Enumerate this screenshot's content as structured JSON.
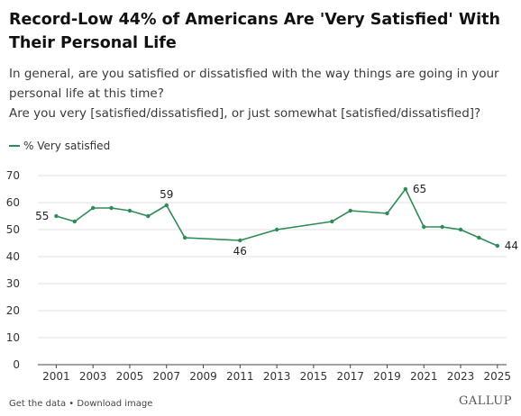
{
  "header": {
    "title": "Record-Low 44% of Americans Are 'Very Satisfied' With Their Personal Life",
    "question_line1": "In general, are you satisfied or dissatisfied with the way things are going in your personal life at this time?",
    "question_line2": "Are you very [satisfied/dissatisfied], or just somewhat [satisfied/dissatisfied]?"
  },
  "footer": {
    "get_data": "Get the data",
    "separator": " • ",
    "download": "Download image",
    "brand": "GALLUP"
  },
  "colors": {
    "series": "#2e8b57",
    "grid": "#e2e2e2",
    "axis": "#444444",
    "text": "#333333"
  },
  "chart_data": {
    "type": "line",
    "title": "Record-Low 44% of Americans Are 'Very Satisfied' With Their Personal Life",
    "xlabel": "",
    "ylabel": "",
    "ylim": [
      0,
      70
    ],
    "yticks": [
      0,
      10,
      20,
      30,
      40,
      50,
      60,
      70
    ],
    "xlim": [
      2000,
      2025.5
    ],
    "xticks": [
      2001,
      2003,
      2005,
      2007,
      2009,
      2011,
      2013,
      2015,
      2017,
      2019,
      2021,
      2023,
      2025
    ],
    "grid": "horizontal",
    "legend_position": "top-left",
    "series": [
      {
        "name": "% Very satisfied",
        "x": [
          2001,
          2002,
          2003,
          2004,
          2005,
          2006,
          2007,
          2008,
          2011,
          2013,
          2016,
          2017,
          2019,
          2020,
          2021,
          2022,
          2023,
          2024,
          2025
        ],
        "values": [
          55,
          53,
          58,
          58,
          57,
          55,
          59,
          47,
          46,
          50,
          53,
          57,
          56,
          65,
          51,
          51,
          50,
          47,
          44
        ]
      }
    ],
    "annotations": [
      {
        "x": 2001,
        "y": 55,
        "text": "55",
        "position": "left"
      },
      {
        "x": 2007,
        "y": 59,
        "text": "59",
        "position": "above"
      },
      {
        "x": 2011,
        "y": 46,
        "text": "46",
        "position": "below"
      },
      {
        "x": 2020,
        "y": 65,
        "text": "65",
        "position": "right"
      },
      {
        "x": 2025,
        "y": 44,
        "text": "44",
        "position": "right"
      }
    ]
  }
}
